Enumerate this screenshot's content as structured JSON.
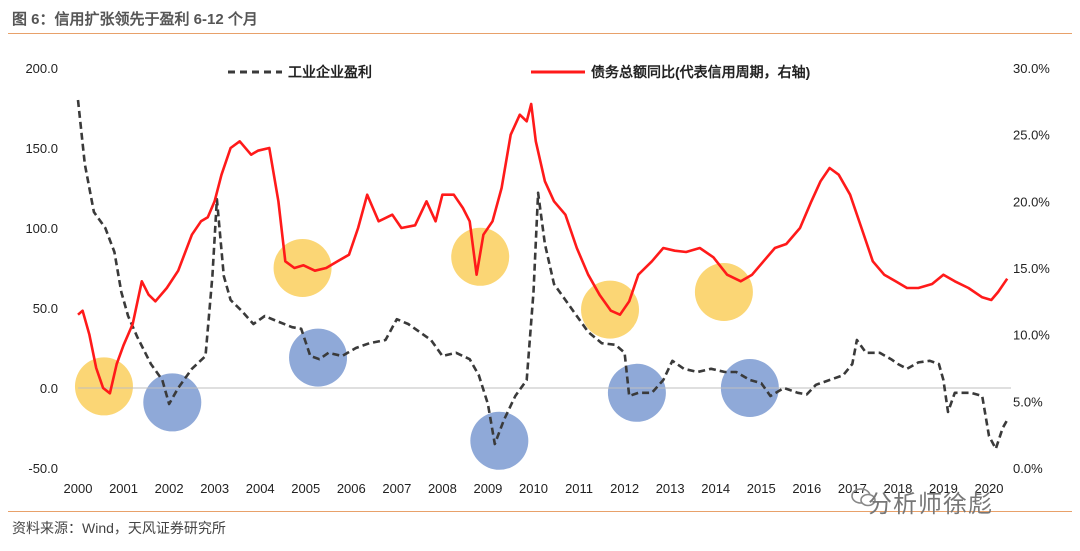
{
  "header": {
    "title": "图 6：信用扩张领先于盈利 6-12 个月"
  },
  "footer": {
    "source": "资料来源：Wind，天风证券研究所",
    "watermark": "分析师徐彪"
  },
  "colors": {
    "profit_line": "#3a3a3a",
    "credit_line": "#ff1a1a",
    "yellow_marker": "#fbd675",
    "blue_marker": "#8fa9d8",
    "rule": "#e8a16a"
  },
  "chart_data": {
    "type": "line",
    "title": "",
    "xlabel": "",
    "ylabel": "",
    "x_ticks": [
      "2000",
      "2001",
      "2002",
      "2003",
      "2004",
      "2005",
      "2006",
      "2007",
      "2008",
      "2009",
      "2010",
      "2011",
      "2012",
      "2013",
      "2014",
      "2015",
      "2016",
      "2017",
      "2018",
      "2019",
      "2020"
    ],
    "y_left": {
      "ticks": [
        "200.0",
        "150.0",
        "100.0",
        "50.0",
        "0.0",
        "-50.0"
      ],
      "range": [
        -50,
        200
      ]
    },
    "y_right": {
      "ticks": [
        "30.0%",
        "25.0%",
        "20.0%",
        "15.0%",
        "10.0%",
        "5.0%",
        "0.0%"
      ],
      "range": [
        0,
        30
      ]
    },
    "legend_placement": "top",
    "series": [
      {
        "name": "工业企业盈利",
        "axis": "left",
        "style": "dashed",
        "points": [
          [
            2000.0,
            180
          ],
          [
            2000.15,
            140
          ],
          [
            2000.35,
            110
          ],
          [
            2000.6,
            100
          ],
          [
            2000.8,
            85
          ],
          [
            2000.95,
            60
          ],
          [
            2001.1,
            45
          ],
          [
            2001.3,
            32
          ],
          [
            2001.6,
            15
          ],
          [
            2001.85,
            5
          ],
          [
            2002.0,
            -10
          ],
          [
            2002.2,
            0
          ],
          [
            2002.5,
            12
          ],
          [
            2002.8,
            20
          ],
          [
            2002.95,
            70
          ],
          [
            2003.05,
            118
          ],
          [
            2003.2,
            70
          ],
          [
            2003.35,
            55
          ],
          [
            2003.6,
            48
          ],
          [
            2003.85,
            40
          ],
          [
            2004.1,
            45
          ],
          [
            2004.35,
            42
          ],
          [
            2004.7,
            38
          ],
          [
            2004.9,
            37
          ],
          [
            2005.1,
            20
          ],
          [
            2005.3,
            18
          ],
          [
            2005.5,
            22
          ],
          [
            2005.8,
            20
          ],
          [
            2006.1,
            25
          ],
          [
            2006.4,
            28
          ],
          [
            2006.75,
            30
          ],
          [
            2007.0,
            43
          ],
          [
            2007.25,
            40
          ],
          [
            2007.5,
            35
          ],
          [
            2007.75,
            30
          ],
          [
            2008.0,
            20
          ],
          [
            2008.3,
            22
          ],
          [
            2008.6,
            18
          ],
          [
            2008.8,
            8
          ],
          [
            2009.0,
            -10
          ],
          [
            2009.15,
            -35
          ],
          [
            2009.35,
            -20
          ],
          [
            2009.6,
            -5
          ],
          [
            2009.85,
            5
          ],
          [
            2010.0,
            60
          ],
          [
            2010.1,
            122
          ],
          [
            2010.25,
            90
          ],
          [
            2010.45,
            65
          ],
          [
            2010.7,
            55
          ],
          [
            2010.95,
            45
          ],
          [
            2011.2,
            35
          ],
          [
            2011.5,
            28
          ],
          [
            2011.8,
            27
          ],
          [
            2012.0,
            22
          ],
          [
            2012.1,
            -5
          ],
          [
            2012.3,
            -3
          ],
          [
            2012.6,
            -3
          ],
          [
            2012.85,
            5
          ],
          [
            2013.05,
            17
          ],
          [
            2013.3,
            12
          ],
          [
            2013.6,
            10
          ],
          [
            2013.9,
            12
          ],
          [
            2014.2,
            10
          ],
          [
            2014.45,
            10
          ],
          [
            2014.75,
            5
          ],
          [
            2015.0,
            3
          ],
          [
            2015.2,
            -5
          ],
          [
            2015.5,
            0
          ],
          [
            2015.8,
            -3
          ],
          [
            2016.0,
            -4
          ],
          [
            2016.2,
            2
          ],
          [
            2016.5,
            5
          ],
          [
            2016.8,
            8
          ],
          [
            2017.0,
            15
          ],
          [
            2017.1,
            30
          ],
          [
            2017.3,
            22
          ],
          [
            2017.6,
            22
          ],
          [
            2017.85,
            18
          ],
          [
            2018.0,
            15
          ],
          [
            2018.2,
            12
          ],
          [
            2018.45,
            16
          ],
          [
            2018.7,
            17
          ],
          [
            2018.9,
            15
          ],
          [
            2019.0,
            5
          ],
          [
            2019.1,
            -15
          ],
          [
            2019.25,
            -3
          ],
          [
            2019.6,
            -3
          ],
          [
            2019.85,
            -5
          ],
          [
            2020.0,
            -30
          ],
          [
            2020.15,
            -38
          ],
          [
            2020.3,
            -25
          ],
          [
            2020.4,
            -20
          ]
        ]
      },
      {
        "name": "债务总额同比(代表信用周期，右轴)",
        "axis": "right",
        "style": "solid",
        "points": [
          [
            2000.0,
            11.5
          ],
          [
            2000.1,
            11.8
          ],
          [
            2000.25,
            10.0
          ],
          [
            2000.4,
            7.5
          ],
          [
            2000.55,
            6.0
          ],
          [
            2000.7,
            5.6
          ],
          [
            2000.85,
            7.8
          ],
          [
            2001.0,
            9.2
          ],
          [
            2001.2,
            10.8
          ],
          [
            2001.4,
            14.0
          ],
          [
            2001.55,
            13.0
          ],
          [
            2001.7,
            12.5
          ],
          [
            2001.95,
            13.5
          ],
          [
            2002.2,
            14.8
          ],
          [
            2002.5,
            17.5
          ],
          [
            2002.7,
            18.5
          ],
          [
            2002.85,
            18.8
          ],
          [
            2003.0,
            20.0
          ],
          [
            2003.15,
            22.0
          ],
          [
            2003.35,
            24.0
          ],
          [
            2003.55,
            24.5
          ],
          [
            2003.8,
            23.5
          ],
          [
            2003.95,
            23.8
          ],
          [
            2004.2,
            24.0
          ],
          [
            2004.4,
            20.0
          ],
          [
            2004.55,
            15.5
          ],
          [
            2004.75,
            15.0
          ],
          [
            2004.95,
            15.2
          ],
          [
            2005.2,
            14.8
          ],
          [
            2005.45,
            15.0
          ],
          [
            2005.7,
            15.5
          ],
          [
            2005.95,
            16.0
          ],
          [
            2006.15,
            18.0
          ],
          [
            2006.35,
            20.5
          ],
          [
            2006.6,
            18.5
          ],
          [
            2006.9,
            19.0
          ],
          [
            2007.1,
            18.0
          ],
          [
            2007.4,
            18.2
          ],
          [
            2007.65,
            20.0
          ],
          [
            2007.85,
            18.5
          ],
          [
            2008.0,
            20.5
          ],
          [
            2008.25,
            20.5
          ],
          [
            2008.45,
            19.5
          ],
          [
            2008.6,
            18.5
          ],
          [
            2008.75,
            14.5
          ],
          [
            2008.9,
            17.5
          ],
          [
            2009.1,
            18.5
          ],
          [
            2009.3,
            21.0
          ],
          [
            2009.5,
            25.0
          ],
          [
            2009.7,
            26.5
          ],
          [
            2009.85,
            26.0
          ],
          [
            2009.95,
            27.3
          ],
          [
            2010.05,
            24.5
          ],
          [
            2010.25,
            21.5
          ],
          [
            2010.45,
            20.0
          ],
          [
            2010.7,
            19.0
          ],
          [
            2010.95,
            16.5
          ],
          [
            2011.2,
            14.5
          ],
          [
            2011.45,
            13.0
          ],
          [
            2011.7,
            11.8
          ],
          [
            2011.9,
            11.5
          ],
          [
            2012.1,
            12.5
          ],
          [
            2012.3,
            14.5
          ],
          [
            2012.6,
            15.5
          ],
          [
            2012.85,
            16.5
          ],
          [
            2013.1,
            16.3
          ],
          [
            2013.35,
            16.2
          ],
          [
            2013.65,
            16.5
          ],
          [
            2013.95,
            15.8
          ],
          [
            2014.25,
            14.5
          ],
          [
            2014.55,
            14.0
          ],
          [
            2014.8,
            14.5
          ],
          [
            2015.05,
            15.5
          ],
          [
            2015.3,
            16.5
          ],
          [
            2015.55,
            16.8
          ],
          [
            2015.85,
            18.0
          ],
          [
            2016.1,
            20.0
          ],
          [
            2016.3,
            21.5
          ],
          [
            2016.5,
            22.5
          ],
          [
            2016.7,
            22.0
          ],
          [
            2016.95,
            20.5
          ],
          [
            2017.2,
            18.0
          ],
          [
            2017.45,
            15.5
          ],
          [
            2017.7,
            14.5
          ],
          [
            2017.95,
            14.0
          ],
          [
            2018.2,
            13.5
          ],
          [
            2018.45,
            13.5
          ],
          [
            2018.75,
            13.8
          ],
          [
            2019.0,
            14.5
          ],
          [
            2019.25,
            14.0
          ],
          [
            2019.55,
            13.5
          ],
          [
            2019.85,
            12.8
          ],
          [
            2020.05,
            12.6
          ],
          [
            2020.2,
            13.2
          ],
          [
            2020.4,
            14.2
          ]
        ]
      }
    ],
    "markers": [
      {
        "color": "yellow",
        "x": 2000.57,
        "y_left": 1
      },
      {
        "color": "yellow",
        "x": 2004.93,
        "y_left": 75
      },
      {
        "color": "yellow",
        "x": 2008.83,
        "y_left": 82
      },
      {
        "color": "yellow",
        "x": 2011.68,
        "y_left": 49
      },
      {
        "color": "yellow",
        "x": 2014.18,
        "y_left": 60
      },
      {
        "color": "blue",
        "x": 2002.07,
        "y_left": -9
      },
      {
        "color": "blue",
        "x": 2005.27,
        "y_left": 19
      },
      {
        "color": "blue",
        "x": 2009.25,
        "y_left": -33
      },
      {
        "color": "blue",
        "x": 2012.27,
        "y_left": -3
      },
      {
        "color": "blue",
        "x": 2014.75,
        "y_left": 0
      }
    ]
  }
}
